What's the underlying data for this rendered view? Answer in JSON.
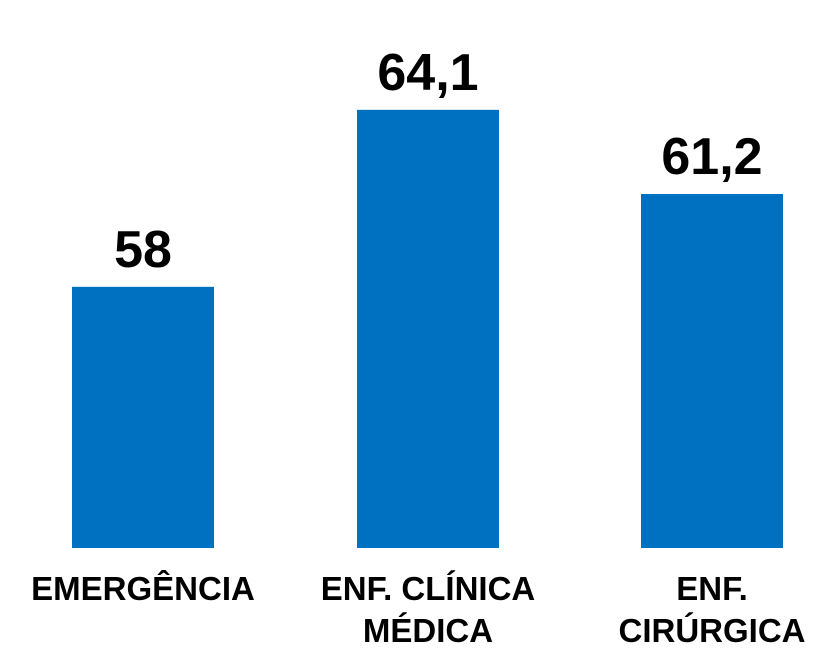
{
  "chart_data": {
    "type": "bar",
    "categories": [
      "EMERGÊNCIA",
      "ENF. CLÍNICA MÉDICA",
      "ENF. CIRÚRGICA"
    ],
    "category_lines": [
      [
        "EMERGÊNCIA"
      ],
      [
        "ENF. CLÍNICA",
        "MÉDICA"
      ],
      [
        "ENF.",
        "CIRÚRGICA"
      ]
    ],
    "values": [
      58,
      64.1,
      61.2
    ],
    "data_labels": [
      "58",
      "64,1",
      "61,2"
    ],
    "title": "",
    "xlabel": "",
    "ylabel": "",
    "ylim": [
      49,
      65.3
    ],
    "grid": false,
    "legend": "none",
    "bar_color": "#0070C0"
  }
}
